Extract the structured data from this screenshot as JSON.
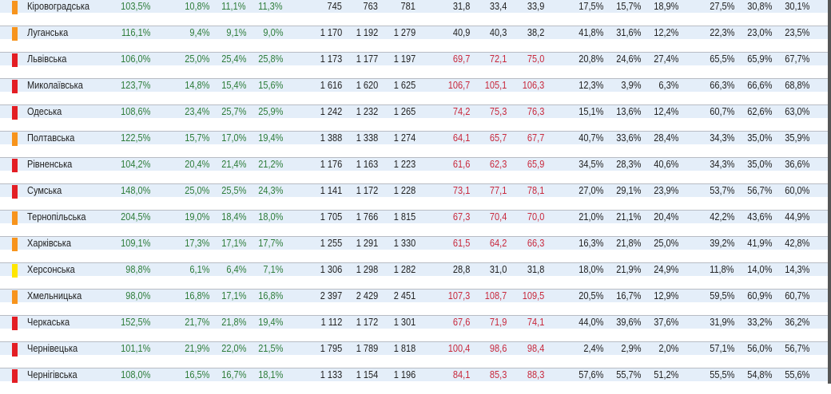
{
  "colors": {
    "orange": "#f7941d",
    "red": "#e31e24",
    "yellow": "#ffe600",
    "green_text": "#2e7d3a",
    "red_text": "#c8283c"
  },
  "rows": [
    {
      "name": "Кіровоградська",
      "marker": "orange",
      "v": [
        "103,5%",
        "10,8%",
        "11,1%",
        "11,3%",
        "745",
        "763",
        "781",
        "31,8",
        "33,4",
        "33,9",
        "17,5%",
        "15,7%",
        "18,9%",
        "27,5%",
        "30,8%",
        "30,1%"
      ],
      "red": false
    },
    {
      "name": "Луганська",
      "marker": "orange",
      "v": [
        "116,1%",
        "9,4%",
        "9,1%",
        "9,0%",
        "1 170",
        "1 192",
        "1 279",
        "40,9",
        "40,3",
        "38,2",
        "41,8%",
        "31,6%",
        "12,2%",
        "22,3%",
        "23,0%",
        "23,5%"
      ],
      "red": false
    },
    {
      "name": "Львівська",
      "marker": "red",
      "v": [
        "106,0%",
        "25,0%",
        "25,4%",
        "25,8%",
        "1 173",
        "1 177",
        "1 197",
        "69,7",
        "72,1",
        "75,0",
        "20,8%",
        "24,6%",
        "27,4%",
        "65,5%",
        "65,9%",
        "67,7%"
      ],
      "red": true
    },
    {
      "name": "Миколаївська",
      "marker": "red",
      "v": [
        "123,7%",
        "14,8%",
        "15,4%",
        "15,6%",
        "1 616",
        "1 620",
        "1 625",
        "106,7",
        "105,1",
        "106,3",
        "12,3%",
        "3,9%",
        "6,3%",
        "66,3%",
        "66,6%",
        "68,8%"
      ],
      "red": true
    },
    {
      "name": "Одеська",
      "marker": "red",
      "v": [
        "108,6%",
        "23,4%",
        "25,7%",
        "25,9%",
        "1 242",
        "1 232",
        "1 265",
        "74,2",
        "75,3",
        "76,3",
        "15,1%",
        "13,6%",
        "12,4%",
        "60,7%",
        "62,6%",
        "63,0%"
      ],
      "red": true
    },
    {
      "name": "Полтавська",
      "marker": "orange",
      "v": [
        "122,5%",
        "15,7%",
        "17,0%",
        "19,4%",
        "1 388",
        "1 338",
        "1 274",
        "64,1",
        "65,7",
        "67,7",
        "40,7%",
        "33,6%",
        "28,4%",
        "34,3%",
        "35,0%",
        "35,9%"
      ],
      "red": true
    },
    {
      "name": "Рівненська",
      "marker": "red",
      "v": [
        "104,2%",
        "20,4%",
        "21,4%",
        "21,2%",
        "1 176",
        "1 163",
        "1 223",
        "61,6",
        "62,3",
        "65,9",
        "34,5%",
        "28,3%",
        "40,6%",
        "34,3%",
        "35,0%",
        "36,6%"
      ],
      "red": true
    },
    {
      "name": "Сумська",
      "marker": "red",
      "v": [
        "148,0%",
        "25,0%",
        "25,5%",
        "24,3%",
        "1 141",
        "1 172",
        "1 228",
        "73,1",
        "77,1",
        "78,1",
        "27,0%",
        "29,1%",
        "23,9%",
        "53,7%",
        "56,7%",
        "60,0%"
      ],
      "red": true
    },
    {
      "name": "Тернопільська",
      "marker": "orange",
      "v": [
        "204,5%",
        "19,0%",
        "18,4%",
        "18,0%",
        "1 705",
        "1 766",
        "1 815",
        "67,3",
        "70,4",
        "70,0",
        "21,0%",
        "21,1%",
        "20,4%",
        "42,2%",
        "43,6%",
        "44,9%"
      ],
      "red": true
    },
    {
      "name": "Харківська",
      "marker": "orange",
      "v": [
        "109,1%",
        "17,3%",
        "17,1%",
        "17,7%",
        "1 255",
        "1 291",
        "1 330",
        "61,5",
        "64,2",
        "66,3",
        "16,3%",
        "21,8%",
        "25,0%",
        "39,2%",
        "41,9%",
        "42,8%"
      ],
      "red": true
    },
    {
      "name": "Херсонська",
      "marker": "yellow",
      "v": [
        "98,8%",
        "6,1%",
        "6,4%",
        "7,1%",
        "1 306",
        "1 298",
        "1 282",
        "28,8",
        "31,0",
        "31,8",
        "18,0%",
        "21,9%",
        "24,9%",
        "11,8%",
        "14,0%",
        "14,3%"
      ],
      "red": false
    },
    {
      "name": "Хмельницька",
      "marker": "orange",
      "v": [
        "98,0%",
        "16,8%",
        "17,1%",
        "16,8%",
        "2 397",
        "2 429",
        "2 451",
        "107,3",
        "108,7",
        "109,5",
        "20,5%",
        "16,7%",
        "12,9%",
        "59,5%",
        "60,9%",
        "60,7%"
      ],
      "red": true
    },
    {
      "name": "Черкаська",
      "marker": "red",
      "v": [
        "152,5%",
        "21,7%",
        "21,8%",
        "19,4%",
        "1 112",
        "1 172",
        "1 301",
        "67,6",
        "71,9",
        "74,1",
        "44,0%",
        "39,6%",
        "37,6%",
        "31,9%",
        "33,2%",
        "36,2%"
      ],
      "red": true
    },
    {
      "name": "Чернівецька",
      "marker": "red",
      "v": [
        "101,1%",
        "21,9%",
        "22,0%",
        "21,5%",
        "1 795",
        "1 789",
        "1 818",
        "100,4",
        "98,6",
        "98,4",
        "2,4%",
        "2,9%",
        "2,0%",
        "57,1%",
        "56,0%",
        "56,7%"
      ],
      "red": true
    },
    {
      "name": "Чернігівська",
      "marker": "red",
      "v": [
        "108,0%",
        "16,5%",
        "16,7%",
        "18,1%",
        "1 133",
        "1 154",
        "1 196",
        "84,1",
        "85,3",
        "88,3",
        "57,6%",
        "55,7%",
        "51,2%",
        "55,5%",
        "54,8%",
        "55,6%"
      ],
      "red": true
    }
  ]
}
